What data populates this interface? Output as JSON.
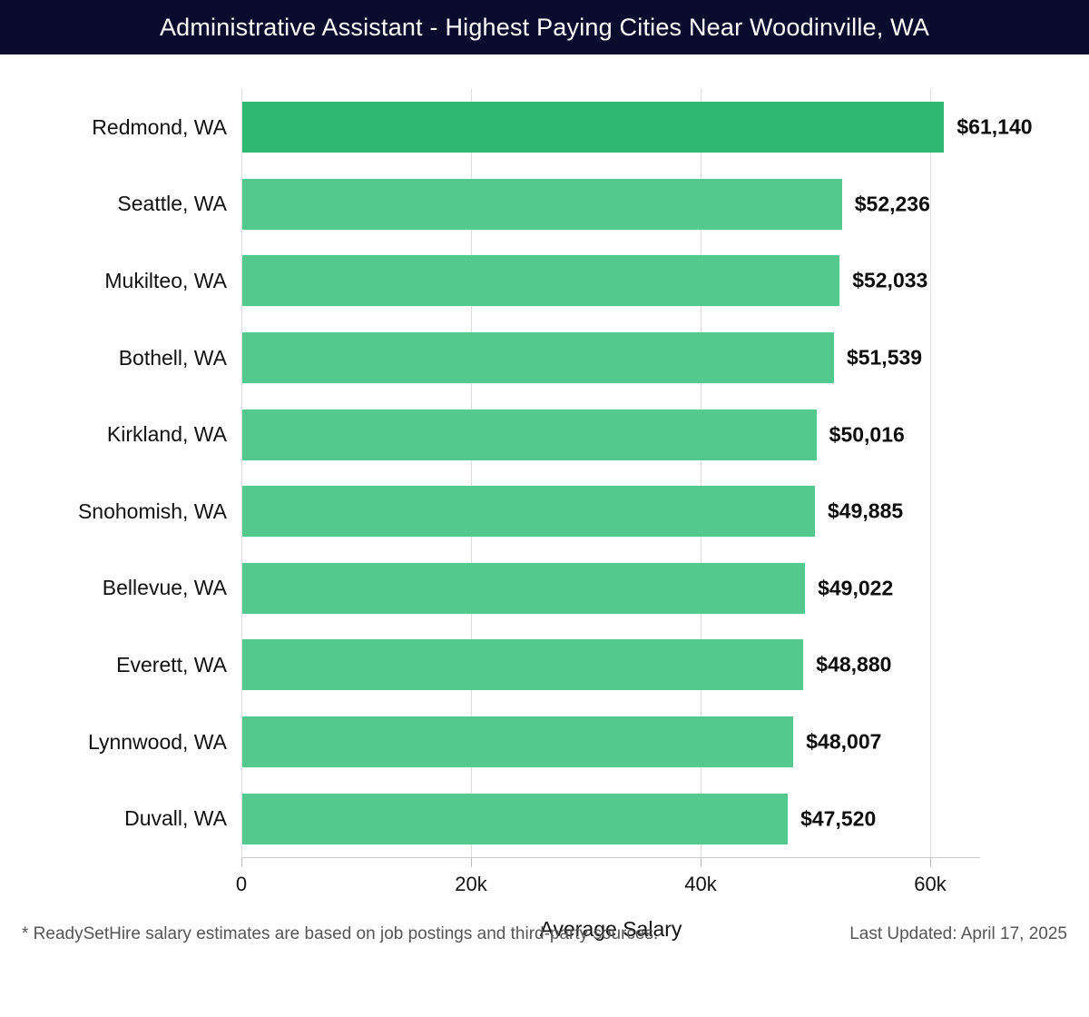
{
  "header": {
    "title": "Administrative Assistant - Highest Paying Cities Near Woodinville, WA",
    "bg_color": "#0a0c2e",
    "text_color": "#ffffff"
  },
  "chart_data": {
    "type": "bar",
    "orientation": "horizontal",
    "title": "Administrative Assistant - Highest Paying Cities Near Woodinville, WA",
    "categories": [
      "Redmond, WA",
      "Seattle, WA",
      "Mukilteo, WA",
      "Bothell, WA",
      "Kirkland, WA",
      "Snohomish, WA",
      "Bellevue, WA",
      "Everett, WA",
      "Lynnwood, WA",
      "Duvall, WA"
    ],
    "values": [
      61140,
      52236,
      52033,
      51539,
      50016,
      49885,
      49022,
      48880,
      48007,
      47520
    ],
    "value_labels": [
      "$61,140",
      "$52,236",
      "$52,033",
      "$51,539",
      "$50,016",
      "$49,885",
      "$49,022",
      "$48,880",
      "$48,007",
      "$47,520"
    ],
    "xlabel": "Average Salary",
    "ylabel": "",
    "x_ticks": [
      "0",
      "20k",
      "40k",
      "60k"
    ],
    "x_tick_values": [
      0,
      20000,
      40000,
      60000
    ],
    "xlim": [
      0,
      64350
    ],
    "grid": true,
    "legend": "none",
    "bar_color": "#53c98e",
    "highlight_color": "#2eb872",
    "highlight_index": 0
  },
  "footer": {
    "note": "* ReadySetHire salary estimates are based on job postings and third-party sources.",
    "updated": "Last Updated: April 17, 2025"
  }
}
